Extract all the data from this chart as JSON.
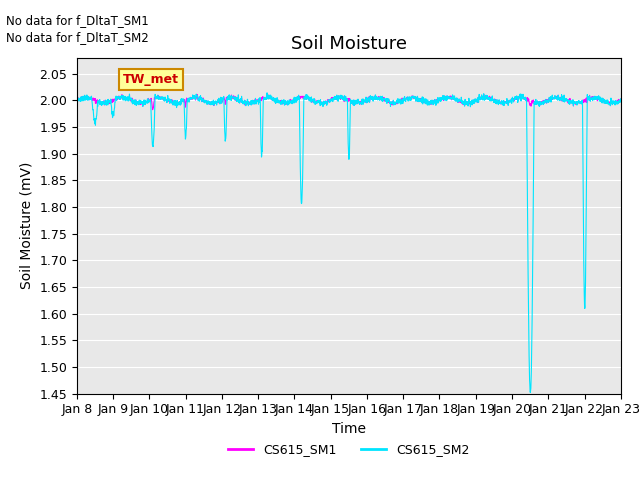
{
  "title": "Soil Moisture",
  "ylabel": "Soil Moisture (mV)",
  "xlabel": "Time",
  "ylim": [
    1.45,
    2.08
  ],
  "yticks": [
    1.45,
    1.5,
    1.55,
    1.6,
    1.65,
    1.7,
    1.75,
    1.8,
    1.85,
    1.9,
    1.95,
    2.0,
    2.05
  ],
  "date_labels": [
    "Jan 8",
    "Jan 9",
    "Jan 10",
    "Jan 11",
    "Jan 12",
    "Jan 13",
    "Jan 14",
    "Jan 15",
    "Jan 16",
    "Jan 17",
    "Jan 18",
    "Jan 19",
    "Jan 20",
    "Jan 21",
    "Jan 22",
    "Jan 23"
  ],
  "no_data_text1": "No data for f_DltaT_SM1",
  "no_data_text2": "No data for f_DltaT_SM2",
  "legend_label1": "CS615_SM1",
  "legend_label2": "CS615_SM2",
  "color_sm1": "#ff00ff",
  "color_sm2": "#00e5ff",
  "annotation_text": "TW_met",
  "annotation_bg": "#ffff99",
  "annotation_border": "#cc8800",
  "annotation_text_color": "#cc0000",
  "plot_bg": "#e8e8e8",
  "fig_bg": "#ffffff",
  "grid_color": "#ffffff",
  "title_fontsize": 13,
  "axis_label_fontsize": 10,
  "tick_fontsize": 9
}
